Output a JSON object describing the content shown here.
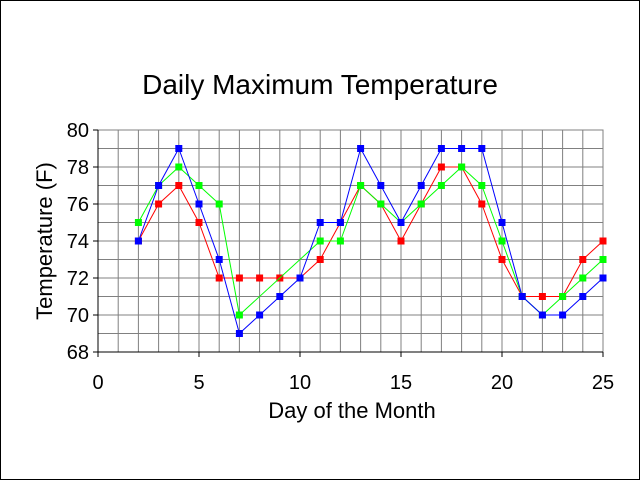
{
  "chart_data": {
    "type": "line",
    "title": "Daily Maximum Temperature",
    "xlabel": "Day of the Month",
    "ylabel": "Temperature (F)",
    "xlim": [
      0,
      25
    ],
    "ylim": [
      68,
      80
    ],
    "x_ticks": [
      "0",
      "5",
      "10",
      "15",
      "20",
      "25"
    ],
    "y_ticks": [
      "68",
      "70",
      "72",
      "74",
      "76",
      "78",
      "80"
    ],
    "grid": true,
    "legend": "none",
    "x": [
      2,
      3,
      4,
      5,
      6,
      7,
      8,
      9,
      10,
      11,
      12,
      13,
      14,
      15,
      16,
      17,
      18,
      19,
      20,
      21,
      22,
      23,
      24,
      25
    ],
    "series": [
      {
        "color": "#ff0000",
        "values": [
          74,
          76,
          77,
          75,
          72,
          72,
          72,
          72,
          72,
          73,
          75,
          77,
          76,
          74,
          76,
          78,
          78,
          76,
          73,
          71,
          71,
          71,
          73,
          74
        ]
      },
      {
        "color": "#00ff00",
        "values": [
          75,
          77,
          78,
          77,
          76,
          70,
          null,
          null,
          null,
          74,
          74,
          77,
          76,
          75,
          76,
          77,
          78,
          77,
          74,
          71,
          70,
          71,
          72,
          73
        ]
      },
      {
        "color": "#0000ff",
        "values": [
          74,
          77,
          79,
          76,
          73,
          69,
          70,
          71,
          72,
          75,
          75,
          79,
          77,
          75,
          77,
          79,
          79,
          79,
          75,
          71,
          70,
          70,
          71,
          72
        ]
      }
    ]
  }
}
